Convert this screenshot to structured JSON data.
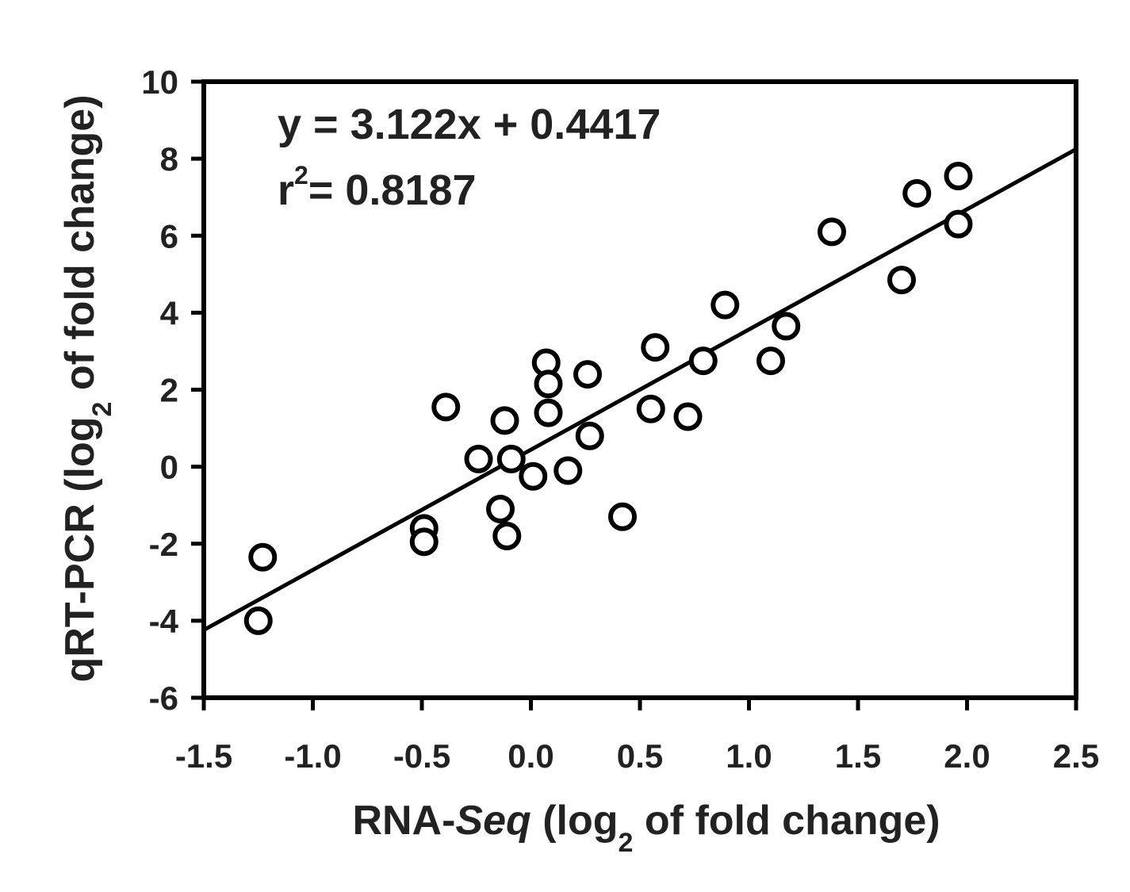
{
  "chart_data": {
    "type": "scatter",
    "xlabel": {
      "prefix": "RNA-",
      "emph": "Seq",
      "open": " (log",
      "sub": "2",
      "rest": " of fold change)"
    },
    "ylabel": {
      "prefix": "qRT-PCR (log",
      "sub": "2",
      "rest": " of fold change)"
    },
    "xlim": [
      -1.5,
      2.5
    ],
    "ylim": [
      -6,
      10
    ],
    "xticks": [
      "-1.5",
      "-1.0",
      "-0.5",
      "0.0",
      "0.5",
      "1.0",
      "1.5",
      "2.0",
      "2.5"
    ],
    "yticks": [
      "-6",
      "-4",
      "-2",
      "0",
      "2",
      "4",
      "6",
      "8",
      "10"
    ],
    "grid": false,
    "regression": {
      "equation": "y = 3.122x + 0.4417",
      "r2_prefix": "r",
      "r2_sup": "2",
      "r2_rest": "= 0.8187",
      "slope": 3.122,
      "intercept": 0.4417
    },
    "points": [
      {
        "x": -1.23,
        "y": -2.35
      },
      {
        "x": -1.25,
        "y": -4.0
      },
      {
        "x": -0.49,
        "y": -1.6
      },
      {
        "x": -0.49,
        "y": -1.95
      },
      {
        "x": -0.39,
        "y": 1.55
      },
      {
        "x": -0.24,
        "y": 0.2
      },
      {
        "x": -0.14,
        "y": -1.1
      },
      {
        "x": -0.12,
        "y": 1.2
      },
      {
        "x": -0.11,
        "y": -1.8
      },
      {
        "x": -0.09,
        "y": 0.2
      },
      {
        "x": 0.01,
        "y": -0.25
      },
      {
        "x": 0.07,
        "y": 2.7
      },
      {
        "x": 0.08,
        "y": 2.15
      },
      {
        "x": 0.08,
        "y": 1.4
      },
      {
        "x": 0.17,
        "y": -0.1
      },
      {
        "x": 0.26,
        "y": 2.4
      },
      {
        "x": 0.27,
        "y": 0.8
      },
      {
        "x": 0.42,
        "y": -1.3
      },
      {
        "x": 0.55,
        "y": 1.5
      },
      {
        "x": 0.57,
        "y": 3.1
      },
      {
        "x": 0.72,
        "y": 1.3
      },
      {
        "x": 0.79,
        "y": 2.75
      },
      {
        "x": 0.89,
        "y": 4.2
      },
      {
        "x": 1.1,
        "y": 2.75
      },
      {
        "x": 1.17,
        "y": 3.65
      },
      {
        "x": 1.38,
        "y": 6.1
      },
      {
        "x": 1.7,
        "y": 4.85
      },
      {
        "x": 1.77,
        "y": 7.1
      },
      {
        "x": 1.96,
        "y": 7.55
      },
      {
        "x": 1.96,
        "y": 6.3
      }
    ]
  }
}
